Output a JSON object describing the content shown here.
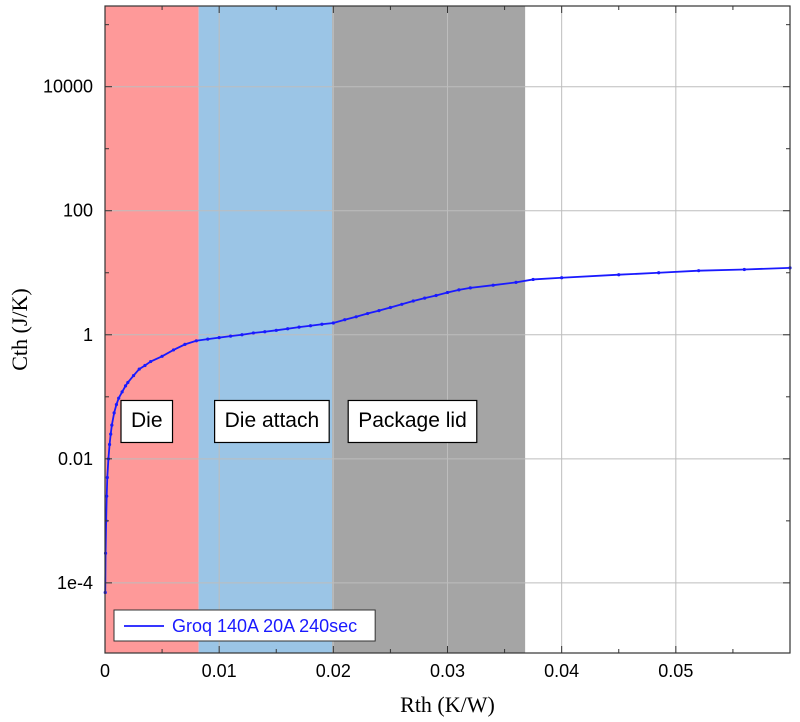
{
  "chart_data": {
    "type": "line",
    "title": "",
    "xlabel": "Rth (K/W)",
    "ylabel": "Cth (J/K)",
    "x_scale": "linear",
    "y_scale": "log",
    "xlim": [
      0,
      0.06
    ],
    "ylim": [
      7.4e-06,
      200000
    ],
    "grid": true,
    "legend_position": "bottom-left",
    "x_ticks": [
      {
        "value": 0,
        "label": "0"
      },
      {
        "value": 0.01,
        "label": "0.01"
      },
      {
        "value": 0.02,
        "label": "0.02"
      },
      {
        "value": 0.03,
        "label": "0.03"
      },
      {
        "value": 0.04,
        "label": "0.04"
      },
      {
        "value": 0.05,
        "label": "0.05"
      }
    ],
    "y_ticks": [
      {
        "value": 0.0001,
        "label": "1e-4"
      },
      {
        "value": 0.01,
        "label": "0.01"
      },
      {
        "value": 1,
        "label": "1"
      },
      {
        "value": 100,
        "label": "100"
      },
      {
        "value": 10000,
        "label": "10000"
      }
    ],
    "y_minor_ticks": [
      0.001,
      0.1,
      10,
      1000,
      100000
    ],
    "regions": [
      {
        "label": "Die",
        "x0": 0,
        "x1": 0.0082,
        "color": "#fe9999"
      },
      {
        "label": "Die attach",
        "x0": 0.0082,
        "x1": 0.0199,
        "color": "#9bc5e6"
      },
      {
        "label": "Package lid",
        "x0": 0.0199,
        "x1": 0.0368,
        "color": "#a5a5a5"
      }
    ],
    "series": [
      {
        "name": "Groq 140A 20A 240sec",
        "color": "#1a1aff",
        "x": [
          2e-05,
          5e-05,
          0.0001,
          0.00015,
          0.0002,
          0.0003,
          0.0004,
          0.0005,
          0.0006,
          0.0008,
          0.001,
          0.0012,
          0.0015,
          0.0018,
          0.002,
          0.0025,
          0.003,
          0.0035,
          0.004,
          0.005,
          0.006,
          0.007,
          0.008,
          0.009,
          0.01,
          0.011,
          0.012,
          0.013,
          0.014,
          0.015,
          0.016,
          0.017,
          0.018,
          0.019,
          0.02,
          0.021,
          0.022,
          0.023,
          0.024,
          0.025,
          0.026,
          0.027,
          0.028,
          0.029,
          0.03,
          0.031,
          0.032,
          0.034,
          0.036,
          0.0375,
          0.04,
          0.045,
          0.0485,
          0.052,
          0.056,
          0.06
        ],
        "y": [
          7e-05,
          0.0003,
          0.001,
          0.0025,
          0.005,
          0.01,
          0.017,
          0.025,
          0.035,
          0.055,
          0.075,
          0.095,
          0.12,
          0.15,
          0.17,
          0.22,
          0.28,
          0.32,
          0.37,
          0.45,
          0.57,
          0.7,
          0.8,
          0.85,
          0.9,
          0.95,
          1.0,
          1.07,
          1.12,
          1.18,
          1.25,
          1.33,
          1.4,
          1.48,
          1.55,
          1.75,
          1.95,
          2.2,
          2.45,
          2.75,
          3.1,
          3.5,
          3.9,
          4.3,
          4.8,
          5.3,
          5.7,
          6.3,
          7.0,
          7.8,
          8.3,
          9.3,
          10.0,
          10.8,
          11.3,
          12.0
        ]
      }
    ]
  }
}
